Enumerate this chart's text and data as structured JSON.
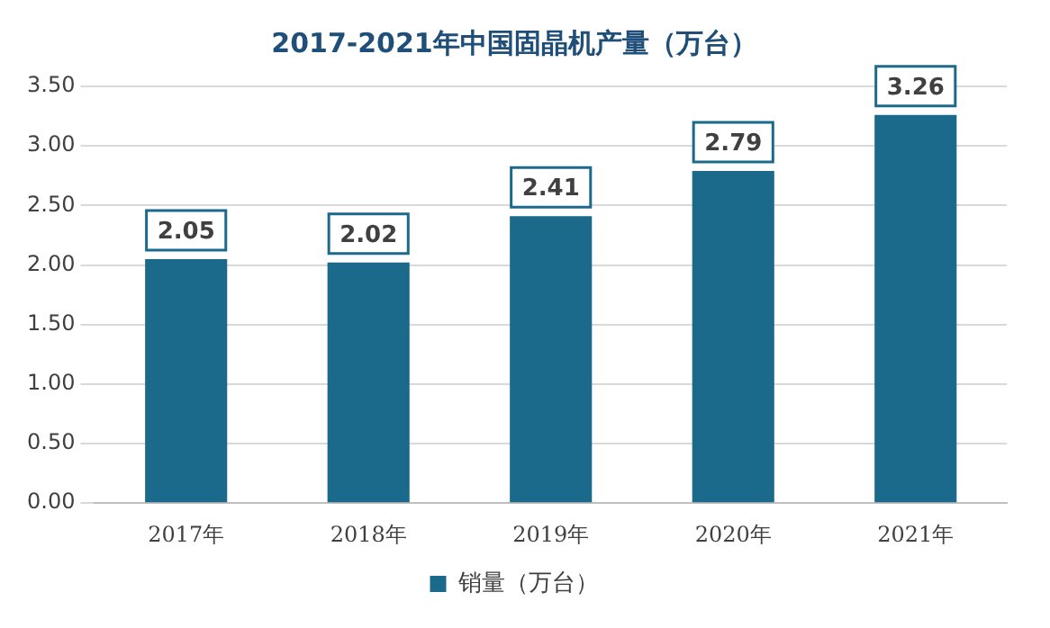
{
  "chart_data": {
    "type": "bar",
    "title": "2017-2021年中国固晶机产量（万台）",
    "categories": [
      "2017年",
      "2018年",
      "2019年",
      "2020年",
      "2021年"
    ],
    "series": [
      {
        "name": "销量（万台）",
        "color": "#1c6a8b",
        "values": [
          2.05,
          2.02,
          2.41,
          2.79,
          3.26
        ]
      }
    ],
    "ylim": [
      0,
      3.5
    ],
    "yticks": [
      {
        "value": 0,
        "label": "0.00"
      },
      {
        "value": 0.5,
        "label": "0.50"
      },
      {
        "value": 1,
        "label": "1.00"
      },
      {
        "value": 1.5,
        "label": "1.50"
      },
      {
        "value": 2,
        "label": "2.00"
      },
      {
        "value": 2.5,
        "label": "2.50"
      },
      {
        "value": 3,
        "label": "3.00"
      },
      {
        "value": 3.5,
        "label": "3.50"
      }
    ],
    "grid": "y",
    "legend": "bottom",
    "data_labels": true
  }
}
